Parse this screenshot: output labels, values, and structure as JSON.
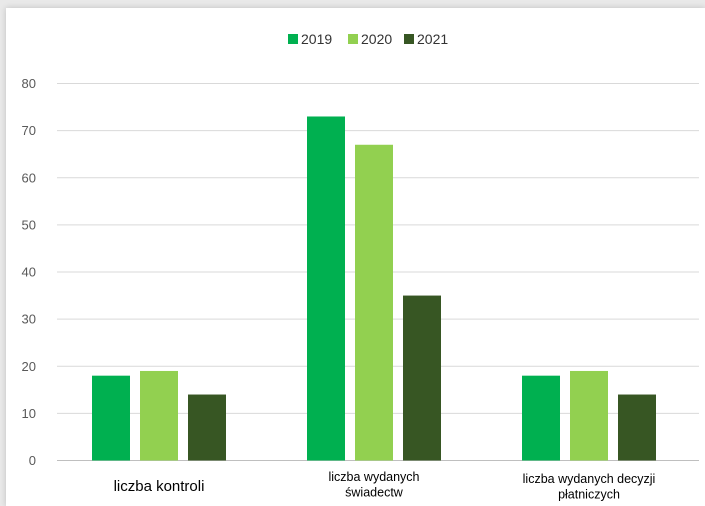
{
  "chart_data": {
    "type": "bar",
    "categories": [
      [
        "liczba kontroli"
      ],
      [
        "liczba wydanych",
        "świadectw"
      ],
      [
        "liczba wydanych decyzji",
        "płatniczych"
      ]
    ],
    "series": [
      {
        "name": "2019",
        "color": "#00b050",
        "values": [
          18,
          73,
          18
        ]
      },
      {
        "name": "2020",
        "color": "#92d050",
        "values": [
          19,
          67,
          19
        ]
      },
      {
        "name": "2021",
        "color": "#375623",
        "values": [
          14,
          35,
          14
        ]
      }
    ],
    "ylim": [
      0,
      80
    ],
    "yticks": [
      0,
      10,
      20,
      30,
      40,
      50,
      60,
      70,
      80
    ],
    "grid": true,
    "legend_position": "top-center"
  },
  "colors": {
    "gridline": "#d9d9d9",
    "axis_line": "#bfbfbf"
  }
}
